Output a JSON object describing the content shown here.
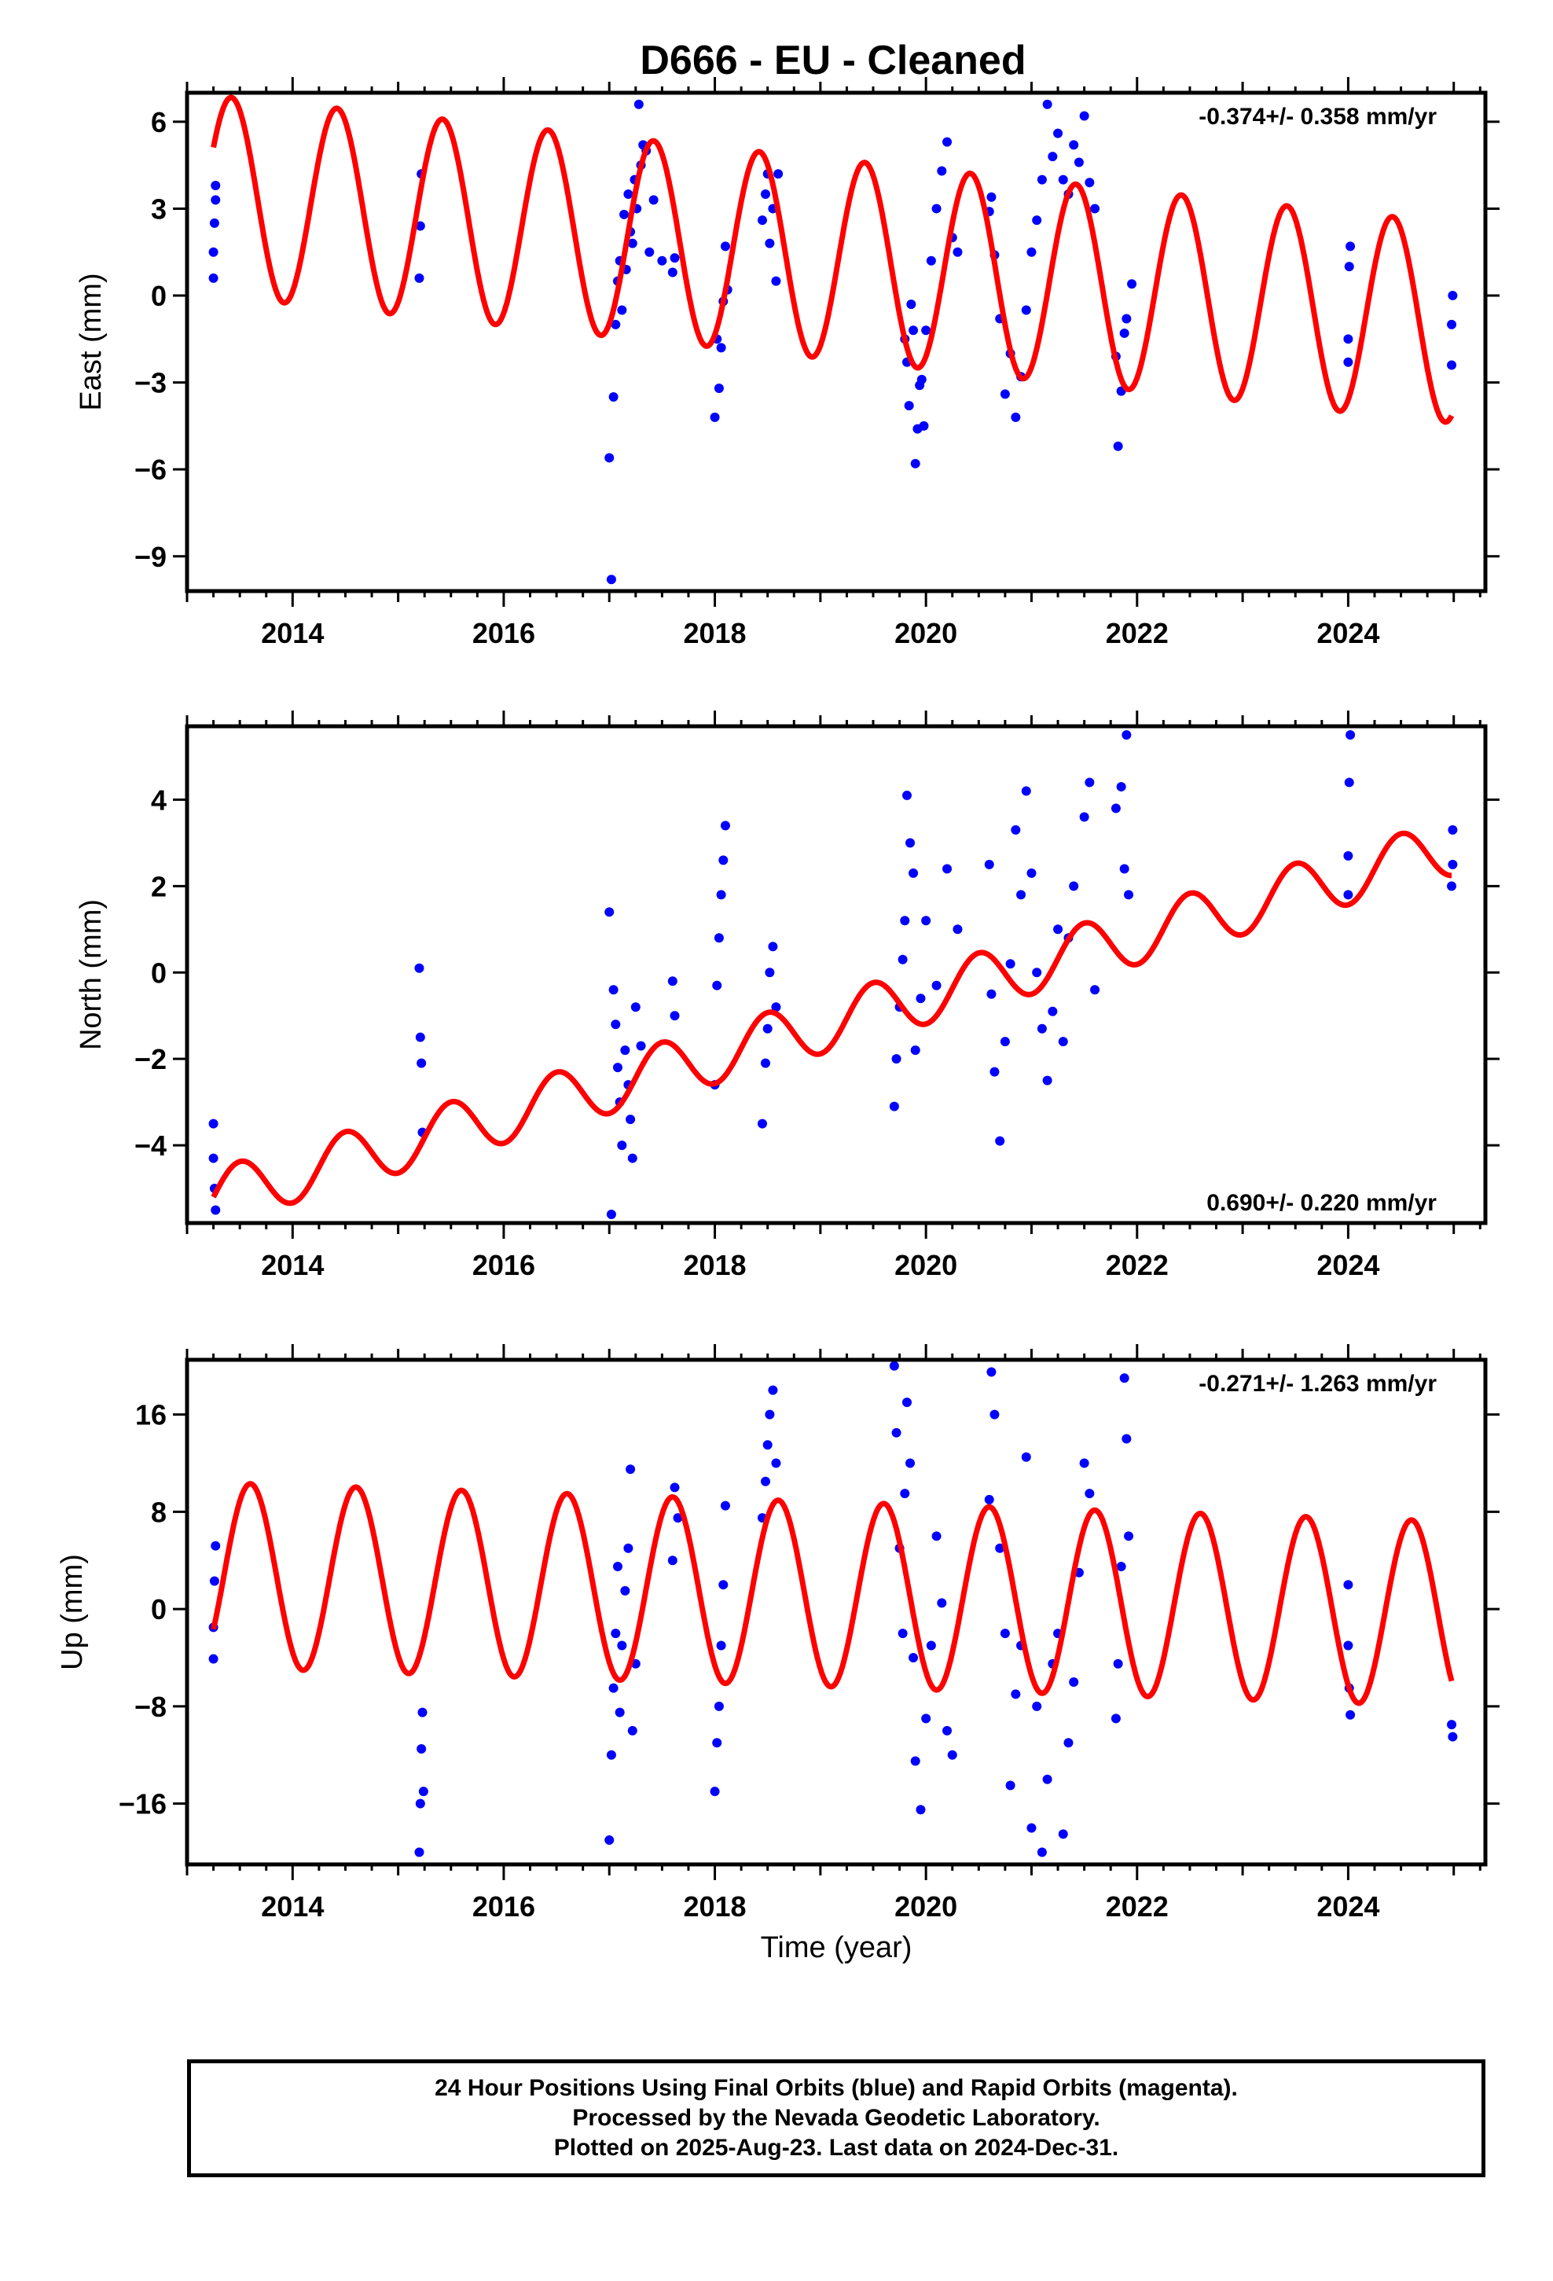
{
  "title": "D666  - EU - Cleaned",
  "colors": {
    "data": "#0000ff",
    "model": "#ff0000",
    "axis": "#000000"
  },
  "xlabel": "Time (year)",
  "footer": {
    "line1": "24 Hour Positions Using Final Orbits (blue) and Rapid Orbits (magenta).",
    "line2": "Processed by the Nevada Geodetic Laboratory.",
    "line3": "Plotted on 2025-Aug-23. Last data on 2024-Dec-31."
  },
  "chart_data": [
    {
      "type": "scatter",
      "ylabel": "East (mm)",
      "rate_label": "-0.374+/- 0.358 mm/yr",
      "rate_position": "top-right",
      "xlim": [
        2013.0,
        2025.3
      ],
      "ylim": [
        -10.2,
        7.0
      ],
      "xticks": [
        2014,
        2016,
        2018,
        2020,
        2022,
        2024
      ],
      "yticks": [
        6,
        3,
        0,
        -3,
        -6,
        -9
      ],
      "ytick_labels": [
        "6",
        "3",
        "0",
        "−3",
        "−6",
        "−9"
      ],
      "model": {
        "name": "model",
        "t0": 2013.25,
        "t1": 2024.98,
        "offset": 3.45,
        "rate": -0.374,
        "amp": 3.45,
        "phase_peak": 2013.42
      },
      "series": [
        {
          "name": "observations",
          "x": [
            2013.25,
            2013.25,
            2013.26,
            2013.27,
            2013.27,
            2015.2,
            2015.21,
            2015.22,
            2017.0,
            2017.02,
            2017.04,
            2017.06,
            2017.08,
            2017.1,
            2017.12,
            2017.14,
            2017.16,
            2017.18,
            2017.2,
            2017.22,
            2017.24,
            2017.26,
            2017.28,
            2017.3,
            2017.32,
            2017.35,
            2017.38,
            2017.42,
            2017.5,
            2017.6,
            2017.62,
            2018.0,
            2018.02,
            2018.04,
            2018.06,
            2018.08,
            2018.1,
            2018.12,
            2018.45,
            2018.48,
            2018.5,
            2018.52,
            2018.55,
            2018.58,
            2018.6,
            2019.8,
            2019.82,
            2019.84,
            2019.86,
            2019.88,
            2019.9,
            2019.92,
            2019.94,
            2019.96,
            2019.98,
            2020.0,
            2020.05,
            2020.1,
            2020.15,
            2020.2,
            2020.25,
            2020.3,
            2020.6,
            2020.62,
            2020.65,
            2020.7,
            2020.75,
            2020.8,
            2020.85,
            2020.9,
            2020.95,
            2021.0,
            2021.05,
            2021.1,
            2021.15,
            2021.2,
            2021.25,
            2021.3,
            2021.35,
            2021.4,
            2021.45,
            2021.5,
            2021.55,
            2021.6,
            2021.8,
            2021.82,
            2021.85,
            2021.88,
            2021.9,
            2021.95,
            2024.0,
            2024.0,
            2024.01,
            2024.02,
            2024.98,
            2024.98,
            2024.99
          ],
          "y": [
            0.6,
            1.5,
            2.5,
            3.3,
            3.8,
            0.6,
            2.4,
            4.2,
            -5.6,
            -9.8,
            -3.5,
            -1.0,
            0.5,
            1.2,
            -0.5,
            2.8,
            0.9,
            3.5,
            2.2,
            1.8,
            4.0,
            3.0,
            6.6,
            4.5,
            5.2,
            5.0,
            1.5,
            3.3,
            1.2,
            0.8,
            1.3,
            -4.2,
            -1.5,
            -3.2,
            -1.8,
            -0.2,
            1.7,
            0.2,
            2.6,
            3.5,
            4.2,
            1.8,
            3.0,
            0.5,
            4.2,
            -1.5,
            -2.3,
            -3.8,
            -0.3,
            -1.2,
            -5.8,
            -4.6,
            -3.1,
            -2.9,
            -4.5,
            -1.2,
            1.2,
            3.0,
            4.3,
            5.3,
            2.0,
            1.5,
            2.9,
            3.4,
            1.4,
            -0.8,
            -3.4,
            -2.0,
            -4.2,
            -2.8,
            -0.5,
            1.5,
            2.6,
            4.0,
            6.6,
            4.8,
            5.6,
            4.0,
            3.5,
            5.2,
            4.6,
            6.2,
            3.9,
            3.0,
            -2.1,
            -5.2,
            -3.3,
            -1.3,
            -0.8,
            0.4,
            -2.3,
            -1.5,
            1.0,
            1.7,
            -2.4,
            -1.0,
            0.0
          ]
        }
      ]
    },
    {
      "type": "scatter",
      "ylabel": "North (mm)",
      "rate_label": "0.690+/- 0.220 mm/yr",
      "rate_position": "bottom-right",
      "xlim": [
        2013.0,
        2025.3
      ],
      "ylim": [
        -5.8,
        5.7
      ],
      "xticks": [
        2014,
        2016,
        2018,
        2020,
        2022,
        2024
      ],
      "yticks": [
        4,
        2,
        0,
        -2,
        -4
      ],
      "ytick_labels": [
        "4",
        "2",
        "0",
        "−2",
        "−4"
      ],
      "model": {
        "name": "model",
        "t0": 2013.25,
        "t1": 2024.98,
        "offset": -5.2,
        "rate": 0.69,
        "amp": 0.65,
        "phase_peak": 2013.5
      },
      "series": [
        {
          "name": "observations",
          "x": [
            2013.25,
            2013.25,
            2013.26,
            2013.27,
            2015.2,
            2015.21,
            2015.22,
            2015.23,
            2017.0,
            2017.02,
            2017.04,
            2017.06,
            2017.08,
            2017.1,
            2017.12,
            2017.15,
            2017.18,
            2017.2,
            2017.22,
            2017.25,
            2017.3,
            2017.6,
            2017.62,
            2018.0,
            2018.02,
            2018.04,
            2018.06,
            2018.08,
            2018.1,
            2018.45,
            2018.48,
            2018.5,
            2018.52,
            2018.55,
            2018.58,
            2019.7,
            2019.72,
            2019.75,
            2019.78,
            2019.8,
            2019.82,
            2019.85,
            2019.88,
            2019.9,
            2019.95,
            2020.0,
            2020.1,
            2020.2,
            2020.3,
            2020.6,
            2020.62,
            2020.65,
            2020.7,
            2020.75,
            2020.8,
            2020.85,
            2020.9,
            2020.95,
            2021.0,
            2021.05,
            2021.1,
            2021.15,
            2021.2,
            2021.25,
            2021.3,
            2021.35,
            2021.4,
            2021.5,
            2021.55,
            2021.6,
            2021.8,
            2021.85,
            2021.88,
            2021.9,
            2021.92,
            2024.0,
            2024.0,
            2024.01,
            2024.02,
            2024.98,
            2024.99,
            2024.99
          ],
          "y": [
            -3.5,
            -4.3,
            -5.0,
            -5.5,
            0.1,
            -1.5,
            -2.1,
            -3.7,
            1.4,
            -5.6,
            -0.4,
            -1.2,
            -2.2,
            -3.0,
            -4.0,
            -1.8,
            -2.6,
            -3.4,
            -4.3,
            -0.8,
            -1.7,
            -0.2,
            -1.0,
            -2.6,
            -0.3,
            0.8,
            1.8,
            2.6,
            3.4,
            -3.5,
            -2.1,
            -1.3,
            0.0,
            0.6,
            -0.8,
            -3.1,
            -2.0,
            -0.8,
            0.3,
            1.2,
            4.1,
            3.0,
            2.3,
            -1.8,
            -0.6,
            1.2,
            -0.3,
            2.4,
            1.0,
            2.5,
            -0.5,
            -2.3,
            -3.9,
            -1.6,
            0.2,
            3.3,
            1.8,
            4.2,
            2.3,
            0.0,
            -1.3,
            -2.5,
            -0.9,
            1.0,
            -1.6,
            0.8,
            2.0,
            3.6,
            4.4,
            -0.4,
            3.8,
            4.3,
            2.4,
            5.5,
            1.8,
            1.8,
            2.7,
            4.4,
            5.5,
            2.0,
            2.5,
            3.3
          ]
        }
      ]
    },
    {
      "type": "scatter",
      "ylabel": "Up (mm)",
      "rate_label": "-0.271+/- 1.263 mm/yr",
      "rate_position": "top-right",
      "xlim": [
        2013.0,
        2025.3
      ],
      "ylim": [
        -21.0,
        20.5
      ],
      "xticks": [
        2014,
        2016,
        2018,
        2020,
        2022,
        2024
      ],
      "yticks": [
        16,
        8,
        0,
        -8,
        -16
      ],
      "ytick_labels": [
        "16",
        "8",
        "0",
        "−8",
        "−16"
      ],
      "model": {
        "name": "model",
        "t0": 2013.25,
        "t1": 2024.98,
        "offset": 2.8,
        "rate": -0.271,
        "amp": 7.6,
        "phase_peak": 2013.6
      },
      "series": [
        {
          "name": "observations",
          "x": [
            2013.25,
            2013.25,
            2013.26,
            2013.27,
            2015.2,
            2015.21,
            2015.22,
            2015.23,
            2015.24,
            2017.0,
            2017.02,
            2017.04,
            2017.06,
            2017.08,
            2017.1,
            2017.12,
            2017.15,
            2017.18,
            2017.2,
            2017.22,
            2017.25,
            2017.6,
            2017.62,
            2017.65,
            2018.0,
            2018.02,
            2018.04,
            2018.06,
            2018.08,
            2018.1,
            2018.45,
            2018.48,
            2018.5,
            2018.52,
            2018.55,
            2018.58,
            2019.7,
            2019.72,
            2019.75,
            2019.78,
            2019.8,
            2019.82,
            2019.85,
            2019.88,
            2019.9,
            2019.95,
            2020.0,
            2020.05,
            2020.1,
            2020.15,
            2020.2,
            2020.25,
            2020.6,
            2020.62,
            2020.65,
            2020.7,
            2020.75,
            2020.8,
            2020.85,
            2020.9,
            2020.95,
            2021.0,
            2021.05,
            2021.1,
            2021.15,
            2021.2,
            2021.25,
            2021.3,
            2021.35,
            2021.4,
            2021.45,
            2021.5,
            2021.55,
            2021.8,
            2021.82,
            2021.85,
            2021.88,
            2021.9,
            2021.92,
            2024.0,
            2024.0,
            2024.01,
            2024.02,
            2024.98,
            2024.99
          ],
          "y": [
            -4.1,
            -1.5,
            2.3,
            5.2,
            -20.0,
            -16.0,
            -11.5,
            -8.5,
            -15.0,
            -19.0,
            -12.0,
            -6.5,
            -2.0,
            3.5,
            -8.5,
            -3.0,
            1.5,
            5.0,
            11.5,
            -10.0,
            -4.5,
            4.0,
            10.0,
            7.5,
            -15.0,
            -11.0,
            -8.0,
            -3.0,
            2.0,
            8.5,
            7.5,
            10.5,
            13.5,
            16.0,
            18.0,
            12.0,
            20.0,
            14.5,
            5.0,
            -2.0,
            9.5,
            17.0,
            12.0,
            -4.0,
            -12.5,
            -16.5,
            -9.0,
            -3.0,
            6.0,
            0.5,
            -10.0,
            -12.0,
            9.0,
            19.5,
            16.0,
            5.0,
            -2.0,
            -14.5,
            -7.0,
            -3.0,
            12.5,
            -18.0,
            -8.0,
            -20.0,
            -14.0,
            -4.5,
            -2.0,
            -18.5,
            -11.0,
            -6.0,
            3.0,
            12.0,
            9.5,
            -9.0,
            -4.5,
            3.5,
            19.0,
            14.0,
            6.0,
            2.0,
            -3.0,
            -6.5,
            -8.7,
            -9.5,
            -10.5
          ]
        }
      ]
    }
  ]
}
